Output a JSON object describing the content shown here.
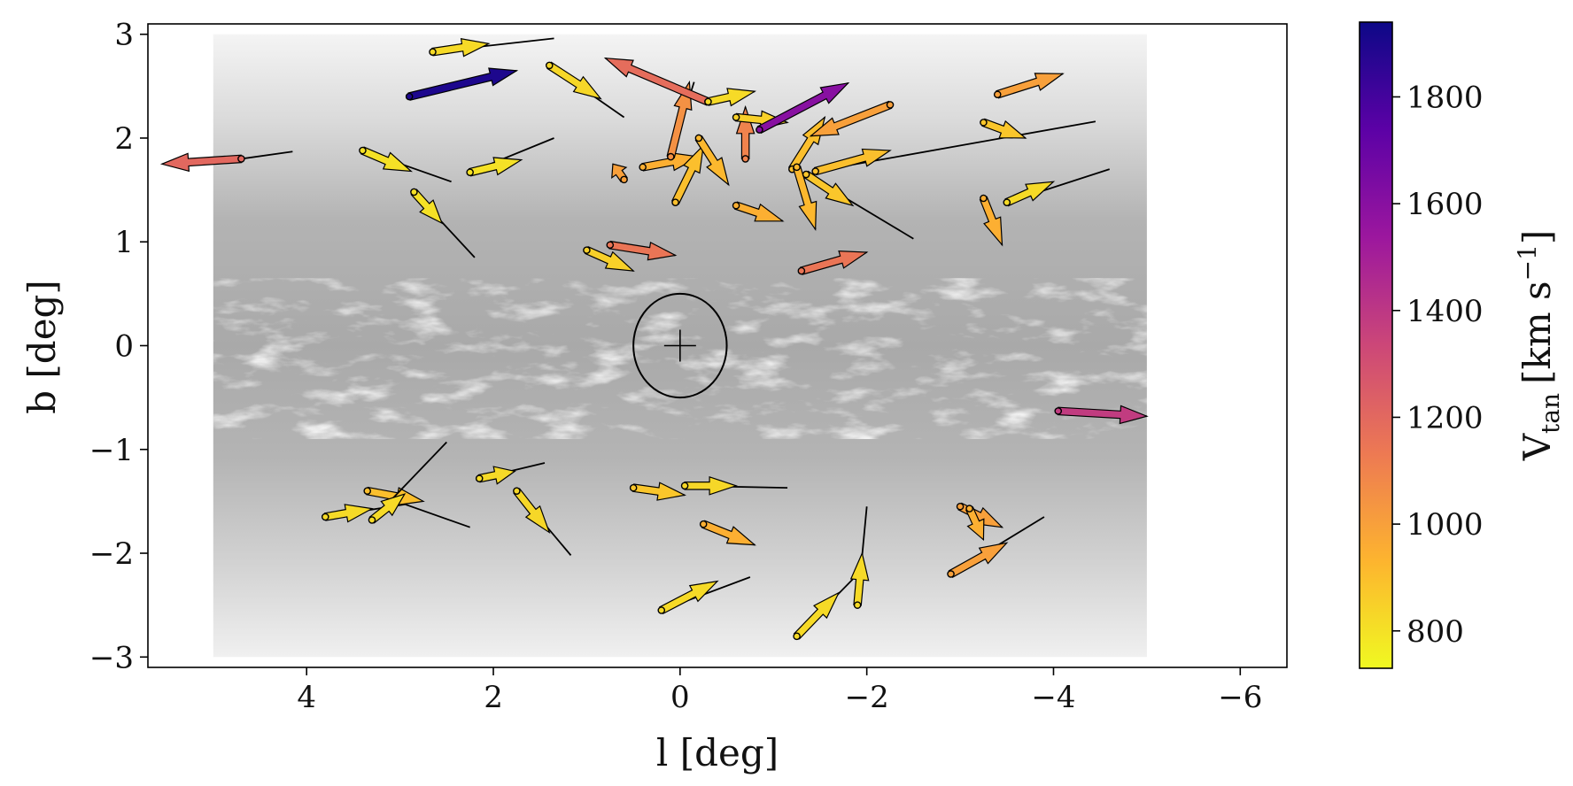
{
  "chart_data": {
    "type": "scatter",
    "subtype": "proper-motion vector field over grayscale sky map",
    "xlabel": "l [deg]",
    "ylabel": "b [deg]",
    "xlim": [
      5.7,
      -6.5
    ],
    "ylim": [
      -3.1,
      3.1
    ],
    "x_inverted": true,
    "xticks": [
      4,
      2,
      0,
      -2,
      -4,
      -6
    ],
    "xtick_labels": [
      "4",
      "2",
      "0",
      "−2",
      "−4",
      "−6"
    ],
    "yticks": [
      3,
      2,
      1,
      0,
      -1,
      -2,
      -3
    ],
    "ytick_labels": [
      "3",
      "2",
      "1",
      "0",
      "−1",
      "−2",
      "−3"
    ],
    "grid": false,
    "background_map": {
      "l_range": [
        5,
        -5
      ],
      "b_range": [
        -3,
        3
      ],
      "colormap": "gray"
    },
    "marker": {
      "l": 0,
      "b": 0,
      "shape": "plus"
    },
    "ellipse": {
      "l": 0,
      "b": 0,
      "semi_axis_l": 0.5,
      "semi_axis_b": 0.5
    },
    "colorbar": {
      "label_main": "V",
      "label_sub": "tan",
      "label_unit": "[km s",
      "label_exp": "−1",
      "label_close": "]",
      "range": [
        730,
        1940
      ],
      "ticks": [
        800,
        1000,
        1200,
        1400,
        1600,
        1800
      ],
      "tick_labels": [
        "800",
        "1000",
        "1200",
        "1400",
        "1600",
        "1800"
      ],
      "colormap": "plasma_r",
      "stops": [
        "#f0f921",
        "#fdb42f",
        "#ed7953",
        "#cc4778",
        "#9c179e",
        "#5c01a6",
        "#0d0887"
      ]
    },
    "points": [
      {
        "l": 2.65,
        "b": 2.83,
        "dl": -0.6,
        "db": 0.08,
        "vtan": 820,
        "el": -1.3,
        "eb": 0.13
      },
      {
        "l": 2.9,
        "b": 2.4,
        "dl": -1.15,
        "db": 0.25,
        "vtan": 1900,
        "el": -1.15,
        "eb": 0.25
      },
      {
        "l": 4.7,
        "b": 1.8,
        "dl": 0.85,
        "db": -0.05,
        "vtan": 1200,
        "el": -0.55,
        "eb": 0.07
      },
      {
        "l": 3.4,
        "b": 1.88,
        "dl": -0.52,
        "db": -0.2,
        "vtan": 800,
        "el": -0.95,
        "eb": -0.3
      },
      {
        "l": 2.85,
        "b": 1.48,
        "dl": -0.3,
        "db": -0.3,
        "vtan": 800,
        "el": -0.65,
        "eb": -0.63
      },
      {
        "l": 2.25,
        "b": 1.67,
        "dl": -0.55,
        "db": 0.12,
        "vtan": 800,
        "el": -0.9,
        "eb": 0.33
      },
      {
        "l": 1.4,
        "b": 2.7,
        "dl": -0.55,
        "db": -0.32,
        "vtan": 830,
        "el": -0.8,
        "eb": -0.5
      },
      {
        "l": 0.6,
        "b": 1.6,
        "dl": 0.12,
        "db": 0.15,
        "vtan": 1000,
        "el": 0.12,
        "eb": 0.15
      },
      {
        "l": 0.4,
        "b": 1.72,
        "dl": -0.6,
        "db": 0.1,
        "vtan": 950,
        "el": -0.6,
        "eb": 0.1
      },
      {
        "l": 0.1,
        "b": 1.82,
        "dl": -0.2,
        "db": 0.72,
        "vtan": 1050,
        "el": -0.25,
        "eb": 0.72
      },
      {
        "l": 0.05,
        "b": 1.38,
        "dl": -0.3,
        "db": 0.55,
        "vtan": 900,
        "el": -0.3,
        "eb": 0.55
      },
      {
        "l": -0.2,
        "b": 2.0,
        "dl": -0.32,
        "db": -0.45,
        "vtan": 920,
        "el": -0.32,
        "eb": -0.45
      },
      {
        "l": -0.7,
        "b": 1.8,
        "dl": 0.0,
        "db": 0.5,
        "vtan": 1100,
        "el": 0.0,
        "eb": 0.5
      },
      {
        "l": -0.3,
        "b": 2.35,
        "dl": 1.1,
        "db": 0.42,
        "vtan": 1180,
        "el": 1.1,
        "eb": 0.42
      },
      {
        "l": -0.3,
        "b": 2.35,
        "dl": -0.5,
        "db": 0.1,
        "vtan": 820,
        "el": -0.5,
        "eb": 0.1
      },
      {
        "l": -0.6,
        "b": 2.2,
        "dl": -0.55,
        "db": -0.05,
        "vtan": 850,
        "el": -0.55,
        "eb": -0.05
      },
      {
        "l": -0.85,
        "b": 2.08,
        "dl": -0.95,
        "db": 0.45,
        "vtan": 1600,
        "el": -0.95,
        "eb": 0.45
      },
      {
        "l": -1.2,
        "b": 1.7,
        "dl": -0.35,
        "db": 0.5,
        "vtan": 900,
        "el": -0.35,
        "eb": 0.5
      },
      {
        "l": -1.25,
        "b": 1.72,
        "dl": -0.2,
        "db": -0.6,
        "vtan": 920,
        "el": -0.2,
        "eb": -0.6
      },
      {
        "l": -1.35,
        "b": 1.65,
        "dl": -0.5,
        "db": -0.3,
        "vtan": 880,
        "el": -1.15,
        "eb": -0.62
      },
      {
        "l": -1.45,
        "b": 1.68,
        "dl": -0.8,
        "db": 0.2,
        "vtan": 900,
        "el": -3.0,
        "eb": 0.48
      },
      {
        "l": -2.25,
        "b": 2.32,
        "dl": 0.85,
        "db": -0.3,
        "vtan": 1000,
        "el": 0.85,
        "eb": -0.3
      },
      {
        "l": -0.6,
        "b": 1.35,
        "dl": -0.5,
        "db": -0.15,
        "vtan": 950,
        "el": -0.5,
        "eb": -0.15
      },
      {
        "l": 1.0,
        "b": 0.92,
        "dl": -0.5,
        "db": -0.2,
        "vtan": 850,
        "el": -0.5,
        "eb": -0.2
      },
      {
        "l": 0.75,
        "b": 0.97,
        "dl": -0.7,
        "db": -0.1,
        "vtan": 1150,
        "el": -0.7,
        "eb": -0.1
      },
      {
        "l": -1.3,
        "b": 0.72,
        "dl": -0.7,
        "db": 0.18,
        "vtan": 1150,
        "el": -0.7,
        "eb": 0.18
      },
      {
        "l": -3.4,
        "b": 2.42,
        "dl": -0.7,
        "db": 0.2,
        "vtan": 1000,
        "el": -0.7,
        "eb": 0.2
      },
      {
        "l": -3.25,
        "b": 2.15,
        "dl": -0.45,
        "db": -0.15,
        "vtan": 880,
        "el": -0.45,
        "eb": -0.15
      },
      {
        "l": -3.25,
        "b": 1.42,
        "dl": -0.2,
        "db": -0.45,
        "vtan": 950,
        "el": -0.2,
        "eb": -0.45
      },
      {
        "l": -3.5,
        "b": 1.38,
        "dl": -0.5,
        "db": 0.2,
        "vtan": 820,
        "el": -1.1,
        "eb": 0.32
      },
      {
        "l": -4.05,
        "b": -0.63,
        "dl": -0.95,
        "db": -0.05,
        "vtan": 1380,
        "el": -0.95,
        "eb": -0.05
      },
      {
        "l": 3.8,
        "b": -1.65,
        "dl": -0.5,
        "db": 0.08,
        "vtan": 820,
        "el": -0.85,
        "eb": 0.12
      },
      {
        "l": 3.35,
        "b": -1.4,
        "dl": -0.6,
        "db": -0.1,
        "vtan": 900,
        "el": -1.1,
        "eb": -0.35
      },
      {
        "l": 3.3,
        "b": -1.68,
        "dl": -0.35,
        "db": 0.25,
        "vtan": 820,
        "el": -0.8,
        "eb": 0.75
      },
      {
        "l": 2.15,
        "b": -1.28,
        "dl": -0.38,
        "db": 0.07,
        "vtan": 820,
        "el": -0.7,
        "eb": 0.15
      },
      {
        "l": 1.75,
        "b": -1.4,
        "dl": -0.35,
        "db": -0.4,
        "vtan": 830,
        "el": -0.58,
        "eb": -0.62
      },
      {
        "l": 0.5,
        "b": -1.37,
        "dl": -0.55,
        "db": -0.07,
        "vtan": 880,
        "el": -0.55,
        "eb": -0.07
      },
      {
        "l": -0.05,
        "b": -1.35,
        "dl": -0.55,
        "db": 0.0,
        "vtan": 830,
        "el": -1.1,
        "eb": -0.02
      },
      {
        "l": -0.25,
        "b": -1.72,
        "dl": -0.55,
        "db": -0.2,
        "vtan": 950,
        "el": -0.55,
        "eb": -0.2
      },
      {
        "l": -1.9,
        "b": -2.5,
        "dl": -0.05,
        "db": 0.5,
        "vtan": 820,
        "el": -0.1,
        "eb": 0.95
      },
      {
        "l": 0.2,
        "b": -2.55,
        "dl": -0.6,
        "db": 0.28,
        "vtan": 820,
        "el": -0.95,
        "eb": 0.32
      },
      {
        "l": -1.25,
        "b": -2.8,
        "dl": -0.45,
        "db": 0.42,
        "vtan": 820,
        "el": -0.6,
        "eb": 0.55
      },
      {
        "l": -3.0,
        "b": -1.55,
        "dl": -0.45,
        "db": -0.2,
        "vtan": 1000,
        "el": -0.45,
        "eb": -0.2
      },
      {
        "l": -3.1,
        "b": -1.57,
        "dl": -0.15,
        "db": -0.3,
        "vtan": 950,
        "el": -0.15,
        "eb": -0.3
      },
      {
        "l": -2.9,
        "b": -2.2,
        "dl": -0.6,
        "db": 0.3,
        "vtan": 1000,
        "el": -1.0,
        "eb": 0.55
      }
    ]
  }
}
